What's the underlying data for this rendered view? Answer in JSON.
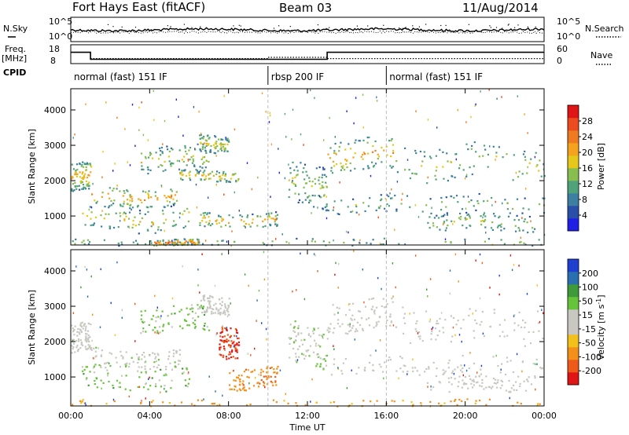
{
  "header": {
    "station": "Fort Hays East (fitACF)",
    "beam": "Beam 03",
    "date": "11/Aug/2014"
  },
  "side_labels": {
    "nsky": "N.Sky",
    "freq_line1": "Freq.",
    "freq_line2": "[MHz]",
    "cpid": "CPID",
    "nsearch": "N.Search",
    "nave": "Nave"
  },
  "noise_panel": {
    "left_ticks": [
      "10^5",
      "10^0"
    ],
    "right_ticks": [
      "10^5",
      "10^0"
    ]
  },
  "freq_panel": {
    "left_ticks": [
      "18",
      "8"
    ],
    "right_ticks": [
      "60",
      "0"
    ]
  },
  "cpid_segments": [
    {
      "label": "normal (fast) 151 IF",
      "start_hour": 0,
      "end_hour": 10
    },
    {
      "label": "rbsp 200 IF",
      "start_hour": 10,
      "end_hour": 16
    },
    {
      "label": "normal (fast) 151 IF",
      "start_hour": 16,
      "end_hour": 24
    }
  ],
  "axes": {
    "xlabel": "Time UT",
    "ylabel": "Slant Range [km]",
    "x_ticks": [
      "00:00",
      "04:00",
      "08:00",
      "12:00",
      "16:00",
      "20:00",
      "00:00"
    ],
    "y_ticks": [
      "1000",
      "2000",
      "3000",
      "4000"
    ]
  },
  "power_colorbar": {
    "label": "Power [dB]",
    "ticks": [
      "4",
      "8",
      "12",
      "16",
      "20",
      "24",
      "28"
    ],
    "colors": [
      "#1f1fe6",
      "#2a4fa8",
      "#3d7fa0",
      "#4fa27a",
      "#88bd4f",
      "#e6c81a",
      "#f5a21f",
      "#f07a1f",
      "#ec4a1f",
      "#e01515"
    ]
  },
  "velocity_colorbar": {
    "label_main": "Velocity [m s",
    "label_sup": "-1",
    "label_end": "]",
    "ticks": [
      "200",
      "100",
      "50",
      "15",
      "-15",
      "-50",
      "-100",
      "-200"
    ],
    "colors": [
      "#1f3fd0",
      "#2a70b0",
      "#3f9a3a",
      "#67c43a",
      "#c8c8c0",
      "#c8c8c0",
      "#f2c01a",
      "#f2901a",
      "#ee5a1a",
      "#e01515"
    ]
  },
  "chart_data": [
    {
      "type": "line",
      "title": "Fort Hays East (fitACF)",
      "series": [
        {
          "name": "N.Sky"
        },
        {
          "name": "N.Search"
        }
      ],
      "xlim": [
        0,
        24
      ]
    },
    {
      "type": "line",
      "series": [
        {
          "name": "Freq.",
          "x": [
            0,
            1,
            1,
            13,
            13,
            24
          ],
          "values": [
            14,
            14,
            10.3,
            10.3,
            14,
            14
          ]
        },
        {
          "name": "Nave",
          "x": [
            1,
            10,
            10,
            13,
            13,
            24
          ],
          "values": [
            16,
            16,
            20,
            20,
            16,
            16
          ]
        }
      ],
      "ylim_left": [
        8,
        18
      ],
      "ylim_right": [
        0,
        60
      ],
      "xlim": [
        0,
        24
      ]
    },
    {
      "type": "heatmap",
      "quantity": "Power",
      "unit": "dB",
      "xlabel": "Time UT",
      "ylabel": "Slant Range [km]",
      "xlim": [
        0,
        24
      ],
      "ylim": [
        180,
        4600
      ],
      "colorbar_ticks": [
        4,
        8,
        12,
        16,
        20,
        24,
        28
      ],
      "regions": [
        {
          "t": [
            0.0,
            1.0
          ],
          "r": [
            1700,
            2500
          ],
          "p": 12,
          "core": 22
        },
        {
          "t": [
            1.0,
            5.5
          ],
          "r": [
            1300,
            1800
          ],
          "p": 13,
          "core": 23
        },
        {
          "t": [
            5.5,
            8.5
          ],
          "r": [
            2000,
            2300
          ],
          "p": 12,
          "core": 20
        },
        {
          "t": [
            3.5,
            7.0
          ],
          "r": [
            2300,
            3000
          ],
          "p": 10,
          "core": 18
        },
        {
          "t": [
            6.5,
            8.0
          ],
          "r": [
            2800,
            3300
          ],
          "p": 10,
          "core": 18
        },
        {
          "t": [
            0.5,
            6.0
          ],
          "r": [
            600,
            1300
          ],
          "p": 10,
          "core": 18
        },
        {
          "t": [
            6.5,
            10.5
          ],
          "r": [
            700,
            1100
          ],
          "p": 12,
          "core": 22
        },
        {
          "t": [
            4.0,
            6.5
          ],
          "r": [
            180,
            350
          ],
          "p": 14,
          "core": 26
        },
        {
          "t": [
            11.0,
            13.0
          ],
          "r": [
            1300,
            2500
          ],
          "p": 9,
          "core": 16
        },
        {
          "t": [
            13.0,
            16.5
          ],
          "r": [
            2300,
            3200
          ],
          "p": 12,
          "core": 22
        },
        {
          "t": [
            16.5,
            24.0
          ],
          "r": [
            2000,
            3000
          ],
          "p": 10,
          "core": 18
        },
        {
          "t": [
            13.0,
            24.0
          ],
          "r": [
            1100,
            1600
          ],
          "p": 8,
          "core": 14
        },
        {
          "t": [
            18.0,
            23.5
          ],
          "r": [
            600,
            1100
          ],
          "p": 9,
          "core": 16
        },
        {
          "t": [
            0.0,
            24.0
          ],
          "r": [
            180,
            380
          ],
          "p": 9,
          "core": 14
        }
      ]
    },
    {
      "type": "heatmap",
      "quantity": "Velocity",
      "unit": "m s-1",
      "xlabel": "Time UT",
      "ylabel": "Slant Range [km]",
      "xlim": [
        0,
        24
      ],
      "ylim": [
        180,
        4600
      ],
      "colorbar_ticks": [
        200,
        100,
        50,
        15,
        -15,
        -50,
        -100,
        -200
      ],
      "regions": [
        {
          "t": [
            0.0,
            1.0
          ],
          "r": [
            1700,
            2500
          ],
          "v": 0
        },
        {
          "t": [
            1.0,
            5.5
          ],
          "r": [
            1300,
            1800
          ],
          "v": 5
        },
        {
          "t": [
            3.5,
            7.0
          ],
          "r": [
            2300,
            3000
          ],
          "v": 20
        },
        {
          "t": [
            6.5,
            8.0
          ],
          "r": [
            2800,
            3300
          ],
          "v": 0
        },
        {
          "t": [
            7.5,
            8.5
          ],
          "r": [
            1600,
            2500
          ],
          "v": -150
        },
        {
          "t": [
            8.0,
            10.5
          ],
          "r": [
            700,
            1300
          ],
          "v": -90
        },
        {
          "t": [
            0.5,
            6.0
          ],
          "r": [
            600,
            1300
          ],
          "v": 20
        },
        {
          "t": [
            11.0,
            13.0
          ],
          "r": [
            1300,
            2500
          ],
          "v": 10
        },
        {
          "t": [
            13.0,
            16.5
          ],
          "r": [
            2300,
            3200
          ],
          "v": 0
        },
        {
          "t": [
            16.5,
            24.0
          ],
          "r": [
            2000,
            3000
          ],
          "v": 0
        },
        {
          "t": [
            13.0,
            24.0
          ],
          "r": [
            1100,
            1600
          ],
          "v": 0
        },
        {
          "t": [
            18.0,
            23.5
          ],
          "r": [
            600,
            1100
          ],
          "v": 0
        },
        {
          "t": [
            0.0,
            24.0
          ],
          "r": [
            180,
            380
          ],
          "v": -60
        }
      ]
    }
  ]
}
